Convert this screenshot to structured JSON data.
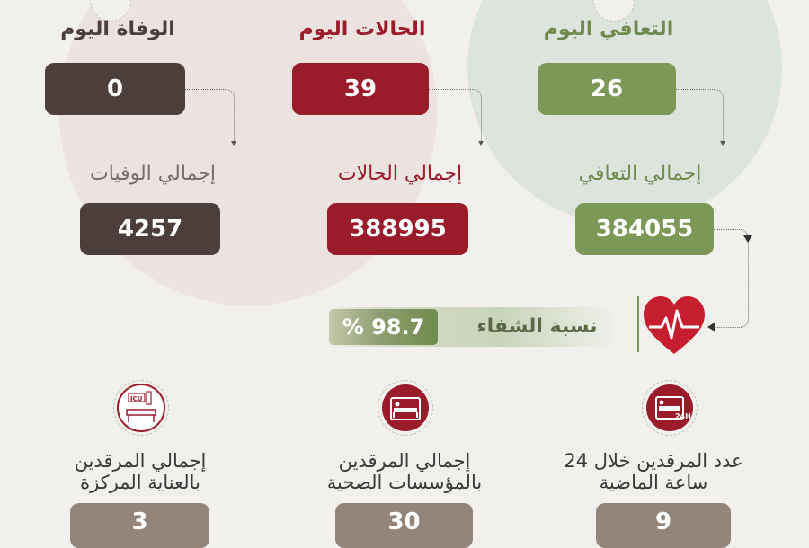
{
  "colors": {
    "background": "#f1f0ec",
    "green": "#7b9857",
    "red": "#9a1b2a",
    "brown": "#4c3e3b",
    "taupe": "#94857a",
    "circle_pink": "#ece1de",
    "circle_green": "#dde4dc",
    "bar_text": "#5b6b49"
  },
  "today": {
    "recovered": {
      "label": "التعافي اليوم",
      "value": "26"
    },
    "cases": {
      "label": "الحالات اليوم",
      "value": "39"
    },
    "deaths": {
      "label": "الوفاة اليوم",
      "value": "0"
    }
  },
  "totals": {
    "recovered": {
      "label": "إجمالي التعافي",
      "value": "384055"
    },
    "cases": {
      "label": "إجمالي الحالات",
      "value": "388995"
    },
    "deaths": {
      "label": "إجمالي الوفيات",
      "value": "4257"
    }
  },
  "recovery": {
    "label": "نسبة الشفاء",
    "value": "% 98.7"
  },
  "hospital": [
    {
      "line1": "عدد المرقدين خلال 24",
      "line2": "ساعة الماضية",
      "value": "9",
      "icon": "bed-24h-icon",
      "icon_text": "24H"
    },
    {
      "line1": "إجمالي المرقدين",
      "line2": "بالمؤسسات الصحية",
      "value": "30",
      "icon": "hospital-bed-icon"
    },
    {
      "line1": "إجمالي المرقدين",
      "line2": "بالعناية المركزة",
      "value": "3",
      "icon": "icu-bed-icon",
      "icon_text": "ICU"
    }
  ]
}
